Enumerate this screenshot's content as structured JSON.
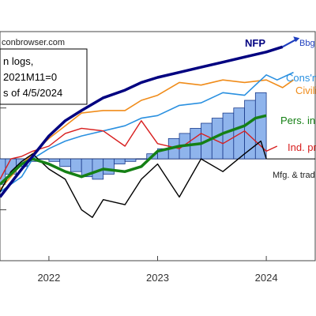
{
  "chart_data": {
    "type": "line",
    "title": "",
    "source_text": "conbrowser.com",
    "legend_box_lines": [
      "n logs,",
      "2021M11=0",
      "s of 4/5/2024"
    ],
    "x_ticks": [
      "2022",
      "2023",
      "2024"
    ],
    "x_tick_values": [
      2022.0,
      2023.0,
      2024.0
    ],
    "xlim": [
      2021.55,
      2024.45
    ],
    "ylim": [
      -0.04,
      0.05
    ],
    "baseline": 0.0,
    "colors": {
      "nfp": "#000080",
      "bbg": "#1f3fbf",
      "consumption": "#2a90e0",
      "civilian": "#f08c1a",
      "income": "#158015",
      "industrial": "#d81e1e",
      "manufacturing": "#000000",
      "bars": "#8fb4ec"
    },
    "series": [
      {
        "key": "nfp",
        "name": "NFP",
        "x": [
          2021.55,
          2021.75,
          2021.85,
          2022.0,
          2022.15,
          2022.3,
          2022.5,
          2022.7,
          2022.85,
          2023.0,
          2023.2,
          2023.4,
          2023.6,
          2023.8,
          2024.0,
          2024.15
        ],
        "y": [
          -0.015,
          -0.004,
          0.001,
          0.009,
          0.015,
          0.019,
          0.024,
          0.027,
          0.03,
          0.032,
          0.034,
          0.036,
          0.038,
          0.04,
          0.042,
          0.044
        ]
      },
      {
        "key": "bbg",
        "name": "Bbg",
        "x": [
          2024.15,
          2024.27
        ],
        "y": [
          0.044,
          0.0468
        ]
      },
      {
        "key": "consumption",
        "name": "Cons'n",
        "x": [
          2021.55,
          2021.75,
          2021.85,
          2022.0,
          2022.15,
          2022.3,
          2022.5,
          2022.7,
          2022.85,
          2023.0,
          2023.2,
          2023.4,
          2023.6,
          2023.8,
          2023.9,
          2024.0,
          2024.1,
          2024.25
        ],
        "y": [
          -0.013,
          -0.007,
          0.0,
          0.004,
          0.007,
          0.009,
          0.011,
          0.013,
          0.016,
          0.017,
          0.021,
          0.022,
          0.026,
          0.025,
          0.029,
          0.033,
          0.031,
          0.034
        ]
      },
      {
        "key": "civilian",
        "name": "Civili",
        "x": [
          2021.55,
          2021.75,
          2021.85,
          2022.0,
          2022.15,
          2022.3,
          2022.5,
          2022.7,
          2022.85,
          2023.0,
          2023.2,
          2023.4,
          2023.6,
          2023.8,
          2024.0,
          2024.15,
          2024.25
        ],
        "y": [
          -0.012,
          -0.002,
          0.002,
          0.008,
          0.013,
          0.018,
          0.019,
          0.019,
          0.023,
          0.025,
          0.03,
          0.029,
          0.031,
          0.03,
          0.031,
          0.028,
          0.031
        ]
      },
      {
        "key": "income",
        "name": "Pers. in",
        "x": [
          2021.55,
          2021.75,
          2021.85,
          2022.0,
          2022.15,
          2022.3,
          2022.5,
          2022.7,
          2022.85,
          2023.0,
          2023.2,
          2023.4,
          2023.6,
          2023.8,
          2023.9,
          2024.0
        ],
        "y": [
          -0.01,
          -0.002,
          0.0,
          -0.002,
          -0.005,
          -0.007,
          -0.004,
          -0.005,
          -0.003,
          0.003,
          0.005,
          0.006,
          0.01,
          0.013,
          0.016,
          0.017
        ]
      },
      {
        "key": "industrial",
        "name": "Ind. pr",
        "x": [
          2021.55,
          2021.65,
          2021.75,
          2021.85,
          2022.0,
          2022.15,
          2022.3,
          2022.5,
          2022.7,
          2022.85,
          2023.0,
          2023.2,
          2023.4,
          2023.6,
          2023.8,
          2024.0,
          2024.1
        ],
        "y": [
          -0.008,
          0.0,
          0.001,
          0.003,
          0.005,
          0.01,
          0.012,
          0.011,
          0.005,
          0.015,
          0.006,
          0.004,
          0.01,
          0.006,
          0.011,
          0.003,
          0.005
        ]
      },
      {
        "key": "manufacturing",
        "name": "Mfg. & trad",
        "x": [
          2021.55,
          2021.65,
          2021.75,
          2021.85,
          2022.0,
          2022.15,
          2022.3,
          2022.4,
          2022.5,
          2022.7,
          2022.85,
          2023.0,
          2023.2,
          2023.4,
          2023.6,
          2023.8,
          2023.95,
          2024.0
        ],
        "y": [
          -0.013,
          -0.005,
          -0.001,
          0.002,
          -0.004,
          -0.008,
          -0.02,
          -0.023,
          -0.016,
          -0.018,
          -0.008,
          -0.002,
          -0.015,
          0.0,
          -0.005,
          0.002,
          0.007,
          0.0
        ]
      }
    ],
    "bars": {
      "name": "",
      "x": [
        2021.45,
        2021.55,
        2021.65,
        2021.75,
        2021.85,
        2021.95,
        2022.05,
        2022.15,
        2022.25,
        2022.35,
        2022.45,
        2022.55,
        2022.65,
        2022.75,
        2022.85,
        2022.95,
        2023.05,
        2023.15,
        2023.25,
        2023.35,
        2023.45,
        2023.55,
        2023.65,
        2023.75,
        2023.85,
        2023.95
      ],
      "values": [
        -0.006,
        -0.01,
        -0.006,
        -0.003,
        -0.001,
        0.0,
        -0.001,
        -0.003,
        -0.005,
        -0.007,
        -0.008,
        -0.006,
        -0.002,
        -0.001,
        0.0,
        0.002,
        0.004,
        0.008,
        0.01,
        0.012,
        0.014,
        0.016,
        0.018,
        0.02,
        0.023,
        0.026
      ]
    }
  },
  "labels": {
    "nfp": "NFP",
    "bbg": "Bbg",
    "consumption": "Cons'n",
    "civilian": "Civili",
    "income": "Pers. in",
    "industrial": "Ind. pr",
    "manufacturing": "Mfg. & trad"
  }
}
